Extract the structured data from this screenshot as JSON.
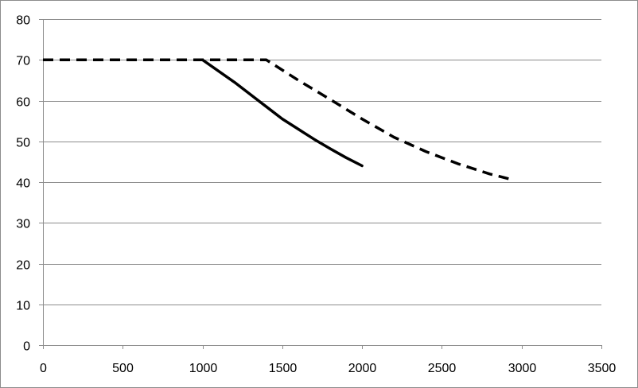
{
  "chart_data": {
    "type": "line",
    "title": "",
    "xlabel": "",
    "ylabel": "",
    "xlim": [
      0,
      3500
    ],
    "ylim": [
      0,
      80
    ],
    "x_ticks": [
      "0",
      "500",
      "1000",
      "1500",
      "2000",
      "2500",
      "3000",
      "3500"
    ],
    "y_ticks": [
      "0",
      "10",
      "20",
      "30",
      "40",
      "50",
      "60",
      "70",
      "80"
    ],
    "grid": {
      "horizontal": true,
      "vertical": false
    },
    "legend": "none",
    "series": [
      {
        "style": "solid",
        "color": "#000000",
        "points": [
          [
            1000,
            70
          ],
          [
            1200,
            64.5
          ],
          [
            1300,
            61.5
          ],
          [
            1400,
            58.5
          ],
          [
            1500,
            55.5
          ],
          [
            1600,
            53
          ],
          [
            1700,
            50.5
          ],
          [
            1800,
            48.2
          ],
          [
            1900,
            46
          ],
          [
            2000,
            44
          ]
        ]
      },
      {
        "style": "dashed",
        "color": "#000000",
        "points": [
          [
            0,
            70
          ],
          [
            1400,
            70
          ],
          [
            1600,
            65
          ],
          [
            1800,
            60.3
          ],
          [
            2000,
            55.5
          ],
          [
            2200,
            51
          ],
          [
            2400,
            47.5
          ],
          [
            2600,
            44.5
          ],
          [
            2800,
            42
          ],
          [
            2950,
            40.5
          ]
        ]
      }
    ]
  }
}
